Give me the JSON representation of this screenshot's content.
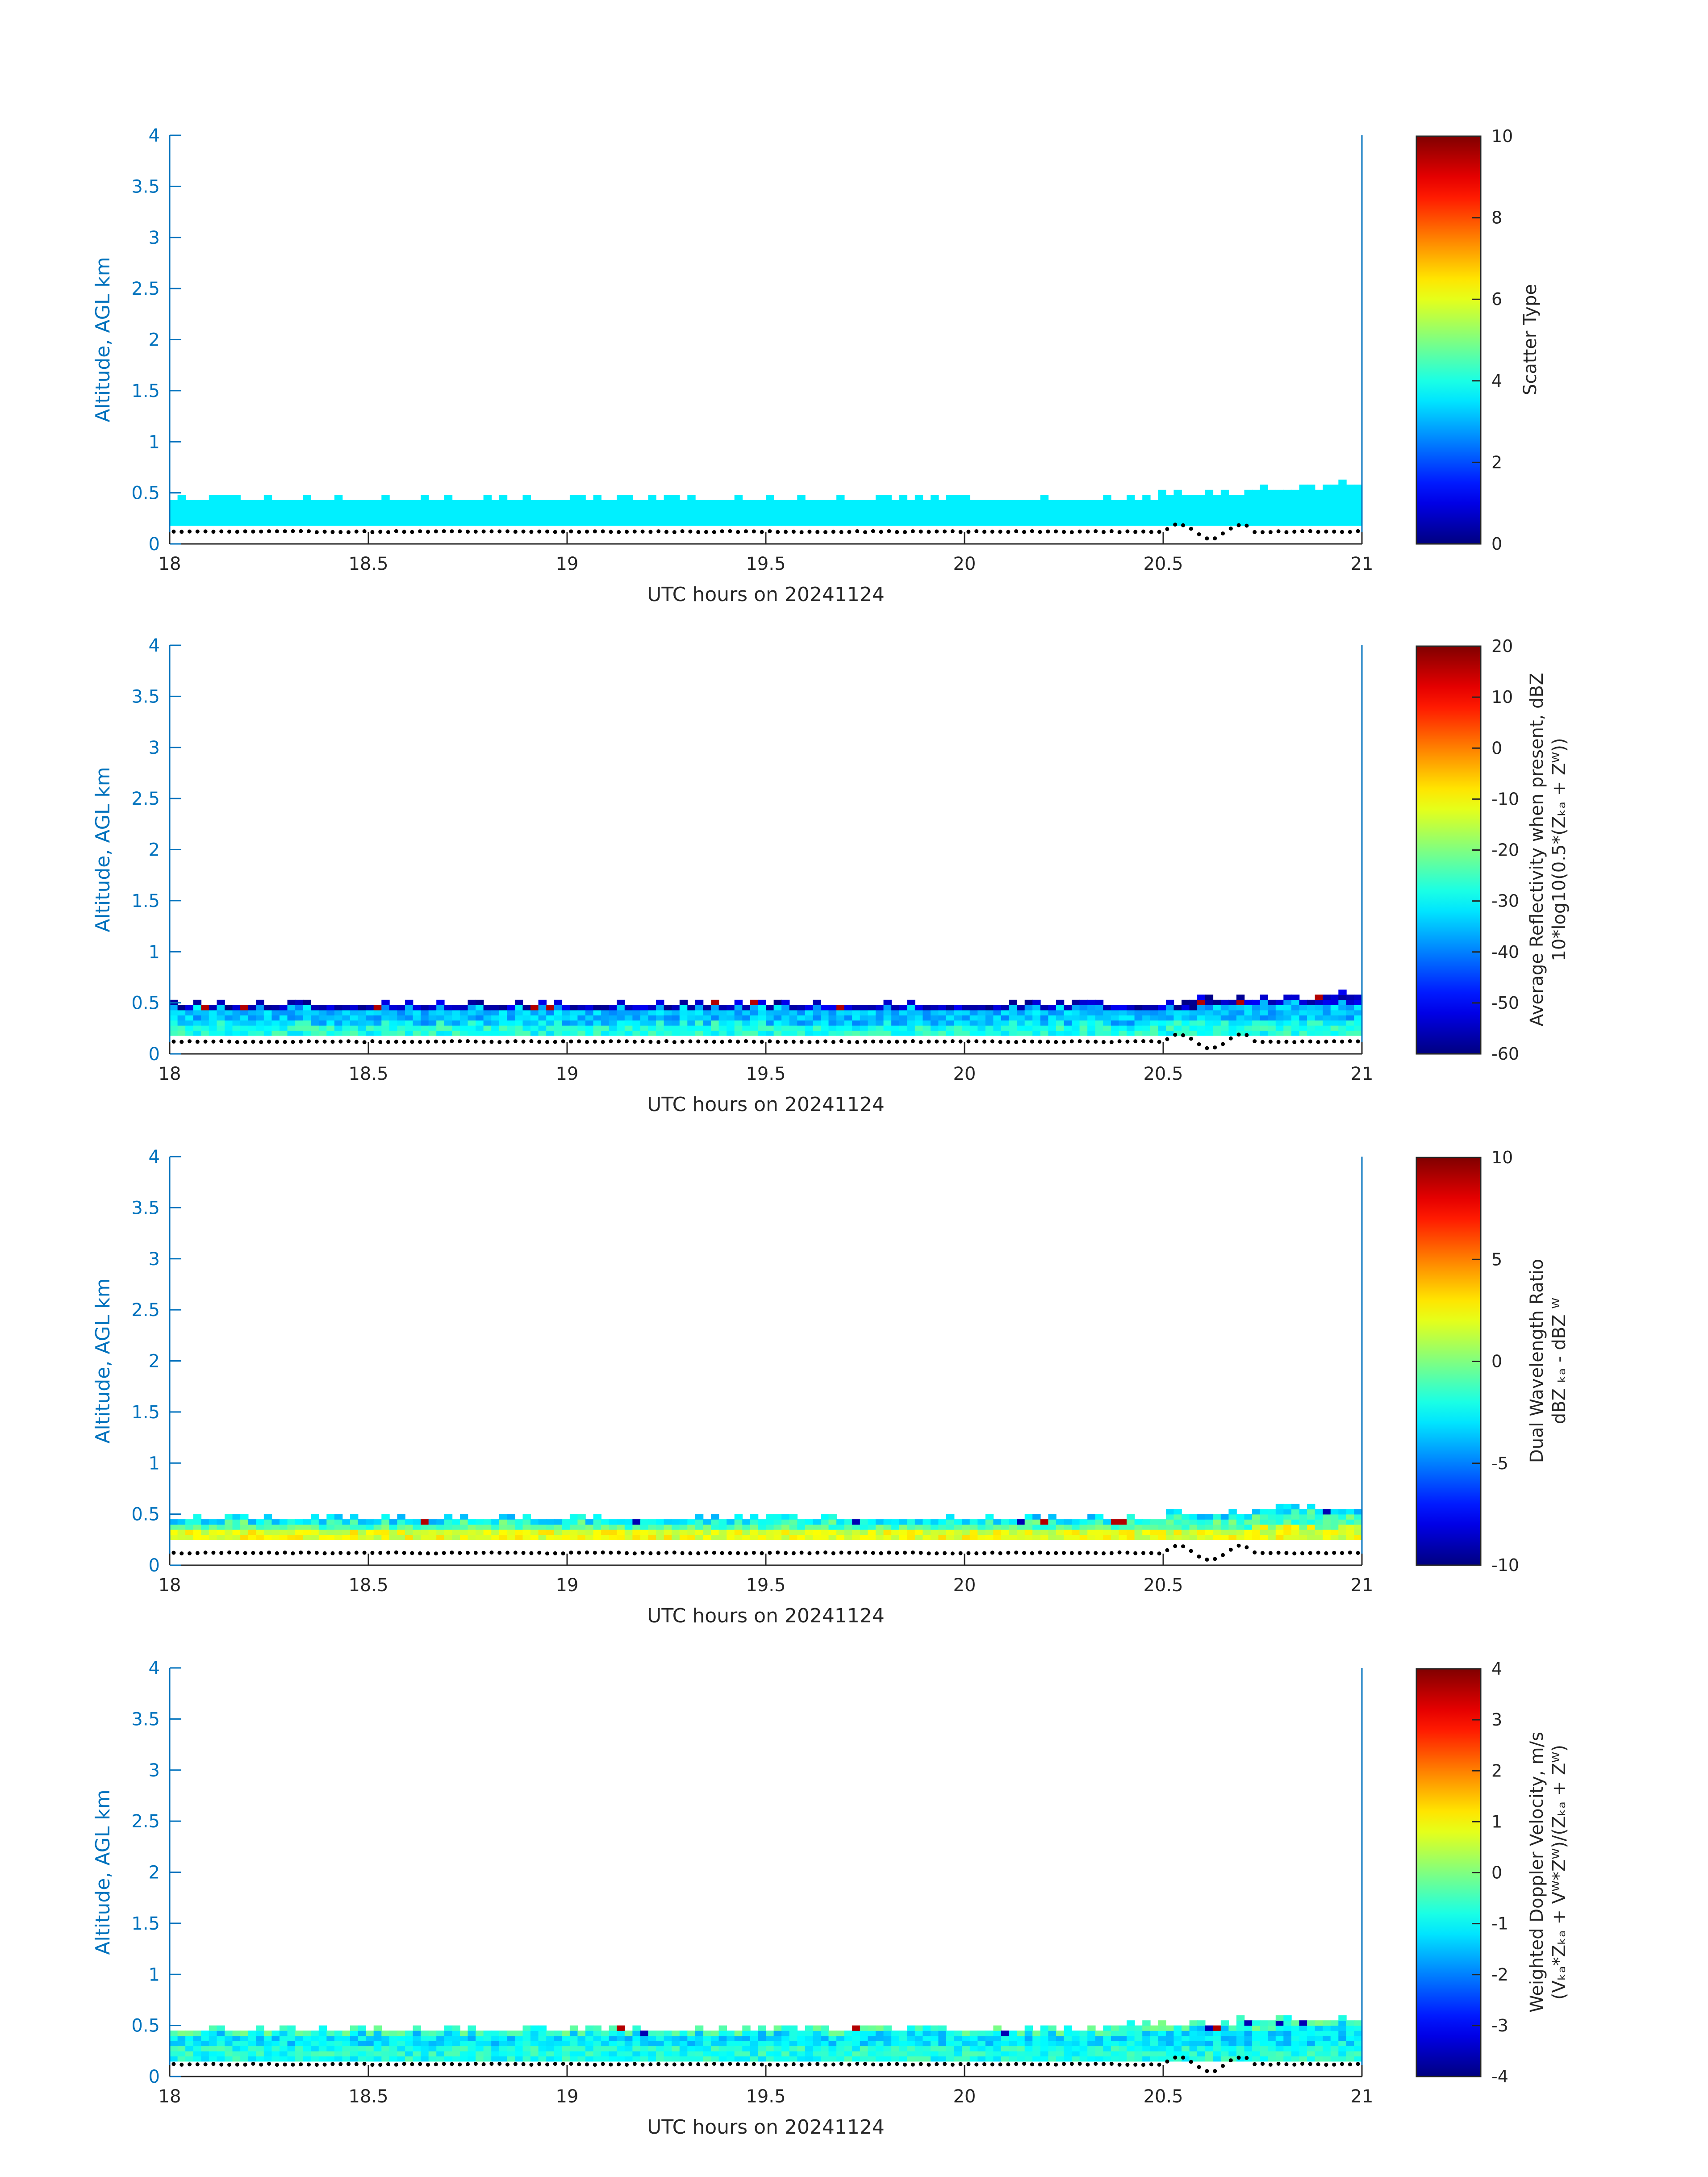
{
  "figure": {
    "panels": [
      {
        "colorbar": {
          "label_lines": [
            "Scatter Type"
          ],
          "ticks": [
            "0",
            "2",
            "4",
            "6",
            "8",
            "10"
          ],
          "range": [
            0,
            10
          ]
        }
      },
      {
        "colorbar": {
          "label_lines": [
            "Average Reflectivity when present, dBZ",
            "10*log10(0.5*(Zₖₐ + Zᵂ))"
          ],
          "ticks": [
            "-60",
            "-50",
            "-40",
            "-30",
            "-20",
            "-10",
            "0",
            "10",
            "20"
          ],
          "range": [
            -60,
            20
          ]
        }
      },
      {
        "colorbar": {
          "label_lines": [
            "Dual Wavelength Ratio",
            "dBZ ₖₐ - dBZ ᵂ"
          ],
          "ticks": [
            "-10",
            "-5",
            "0",
            "5",
            "10"
          ],
          "range": [
            -10,
            10
          ]
        }
      },
      {
        "colorbar": {
          "label_lines": [
            "Weighted Doppler Velocity, m/s",
            "(Vₖₐ*Zₖₐ + Vᵂ*Zᵂ)/(Zₖₐ + Zᵂ)"
          ],
          "ticks": [
            "-4",
            "-3",
            "-2",
            "-1",
            "0",
            "1",
            "2",
            "3",
            "4"
          ],
          "range": [
            -4,
            4
          ]
        }
      }
    ]
  },
  "chart_data": [
    {
      "type": "heatmap",
      "xlabel": "UTC hours on 20241124",
      "ylabel": "Altitude, AGL km",
      "xlim": [
        18,
        21
      ],
      "ylim": [
        0,
        4
      ],
      "xticks": [
        "18",
        "18.5",
        "19",
        "19.5",
        "20",
        "20.5",
        "21"
      ],
      "yticks": [
        "0",
        "0.5",
        "1",
        "1.5",
        "2",
        "2.5",
        "3",
        "3.5",
        "4"
      ],
      "colorbar_label": "Scatter Type",
      "band": {
        "bottom_km": 0.18,
        "top_km_start": 0.4,
        "top_km_end": 0.55,
        "typical_value": 3.6
      },
      "surface_dots_km": 0.12
    },
    {
      "type": "heatmap",
      "xlabel": "UTC hours on 20241124",
      "ylabel": "Altitude, AGL km",
      "xlim": [
        18,
        21
      ],
      "ylim": [
        0,
        4
      ],
      "xticks": [
        "18",
        "18.5",
        "19",
        "19.5",
        "20",
        "20.5",
        "21"
      ],
      "yticks": [
        "0",
        "0.5",
        "1",
        "1.5",
        "2",
        "2.5",
        "3",
        "3.5",
        "4"
      ],
      "colorbar_label": "Average Reflectivity when present, dBZ",
      "band": {
        "bottom_km": 0.18,
        "top_km_start": 0.45,
        "top_km_end": 0.55,
        "top_value": -55,
        "middle_value": -35,
        "bottom_value": -28
      },
      "surface_dots_km": 0.12
    },
    {
      "type": "heatmap",
      "xlabel": "UTC hours on 20241124",
      "ylabel": "Altitude, AGL km",
      "xlim": [
        18,
        21
      ],
      "ylim": [
        0,
        4
      ],
      "xticks": [
        "18",
        "18.5",
        "19",
        "19.5",
        "20",
        "20.5",
        "21"
      ],
      "yticks": [
        "0",
        "0.5",
        "1",
        "1.5",
        "2",
        "2.5",
        "3",
        "3.5",
        "4"
      ],
      "colorbar_label": "Dual Wavelength Ratio",
      "band": {
        "bottom_km": 0.25,
        "top_km_start": 0.42,
        "top_km_end": 0.55,
        "top_value": -3,
        "middle_value": -1,
        "bottom_value": 2
      },
      "surface_dots_km": 0.12
    },
    {
      "type": "heatmap",
      "xlabel": "UTC hours on 20241124",
      "ylabel": "Altitude, AGL km",
      "xlim": [
        18,
        21
      ],
      "ylim": [
        0,
        4
      ],
      "xticks": [
        "18",
        "18.5",
        "19",
        "19.5",
        "20",
        "20.5",
        "21"
      ],
      "yticks": [
        "0",
        "0.5",
        "1",
        "1.5",
        "2",
        "2.5",
        "3",
        "3.5",
        "4"
      ],
      "colorbar_label": "Weighted Doppler Velocity, m/s",
      "band": {
        "bottom_km": 0.15,
        "top_km_start": 0.45,
        "top_km_end": 0.55,
        "top_value": -0.5,
        "middle_value": -1.2,
        "bottom_value": -0.8
      },
      "surface_dots_km": 0.12
    }
  ]
}
